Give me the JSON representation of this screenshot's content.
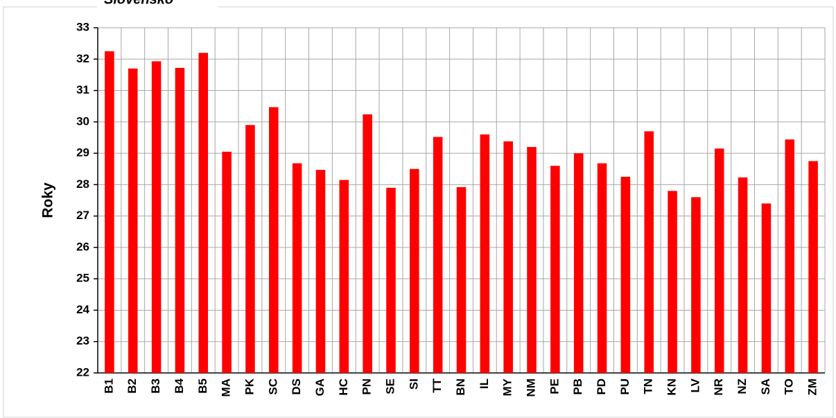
{
  "chart_data": {
    "type": "bar",
    "title": "Slovensko",
    "y_label": "Roky",
    "categories": [
      "B1",
      "B2",
      "B3",
      "B4",
      "B5",
      "MA",
      "PK",
      "SC",
      "DS",
      "GA",
      "HC",
      "PN",
      "SE",
      "SI",
      "TT",
      "BN",
      "IL",
      "MY",
      "NM",
      "PE",
      "PB",
      "PD",
      "PU",
      "TN",
      "KN",
      "LV",
      "NR",
      "NZ",
      "SA",
      "TO",
      "ZM"
    ],
    "values": [
      32.25,
      31.7,
      31.93,
      31.72,
      32.2,
      29.05,
      29.9,
      30.47,
      28.68,
      28.47,
      28.15,
      30.24,
      27.9,
      28.5,
      29.52,
      27.92,
      29.6,
      29.38,
      29.2,
      28.6,
      29.0,
      28.68,
      28.25,
      29.7,
      27.8,
      27.6,
      29.15,
      28.23,
      27.4,
      29.44,
      28.75
    ],
    "color": "#ff0000",
    "ylim": [
      22,
      33
    ],
    "yticks": [
      22,
      23,
      24,
      25,
      26,
      27,
      28,
      29,
      30,
      31,
      32,
      33
    ],
    "grid": true
  }
}
